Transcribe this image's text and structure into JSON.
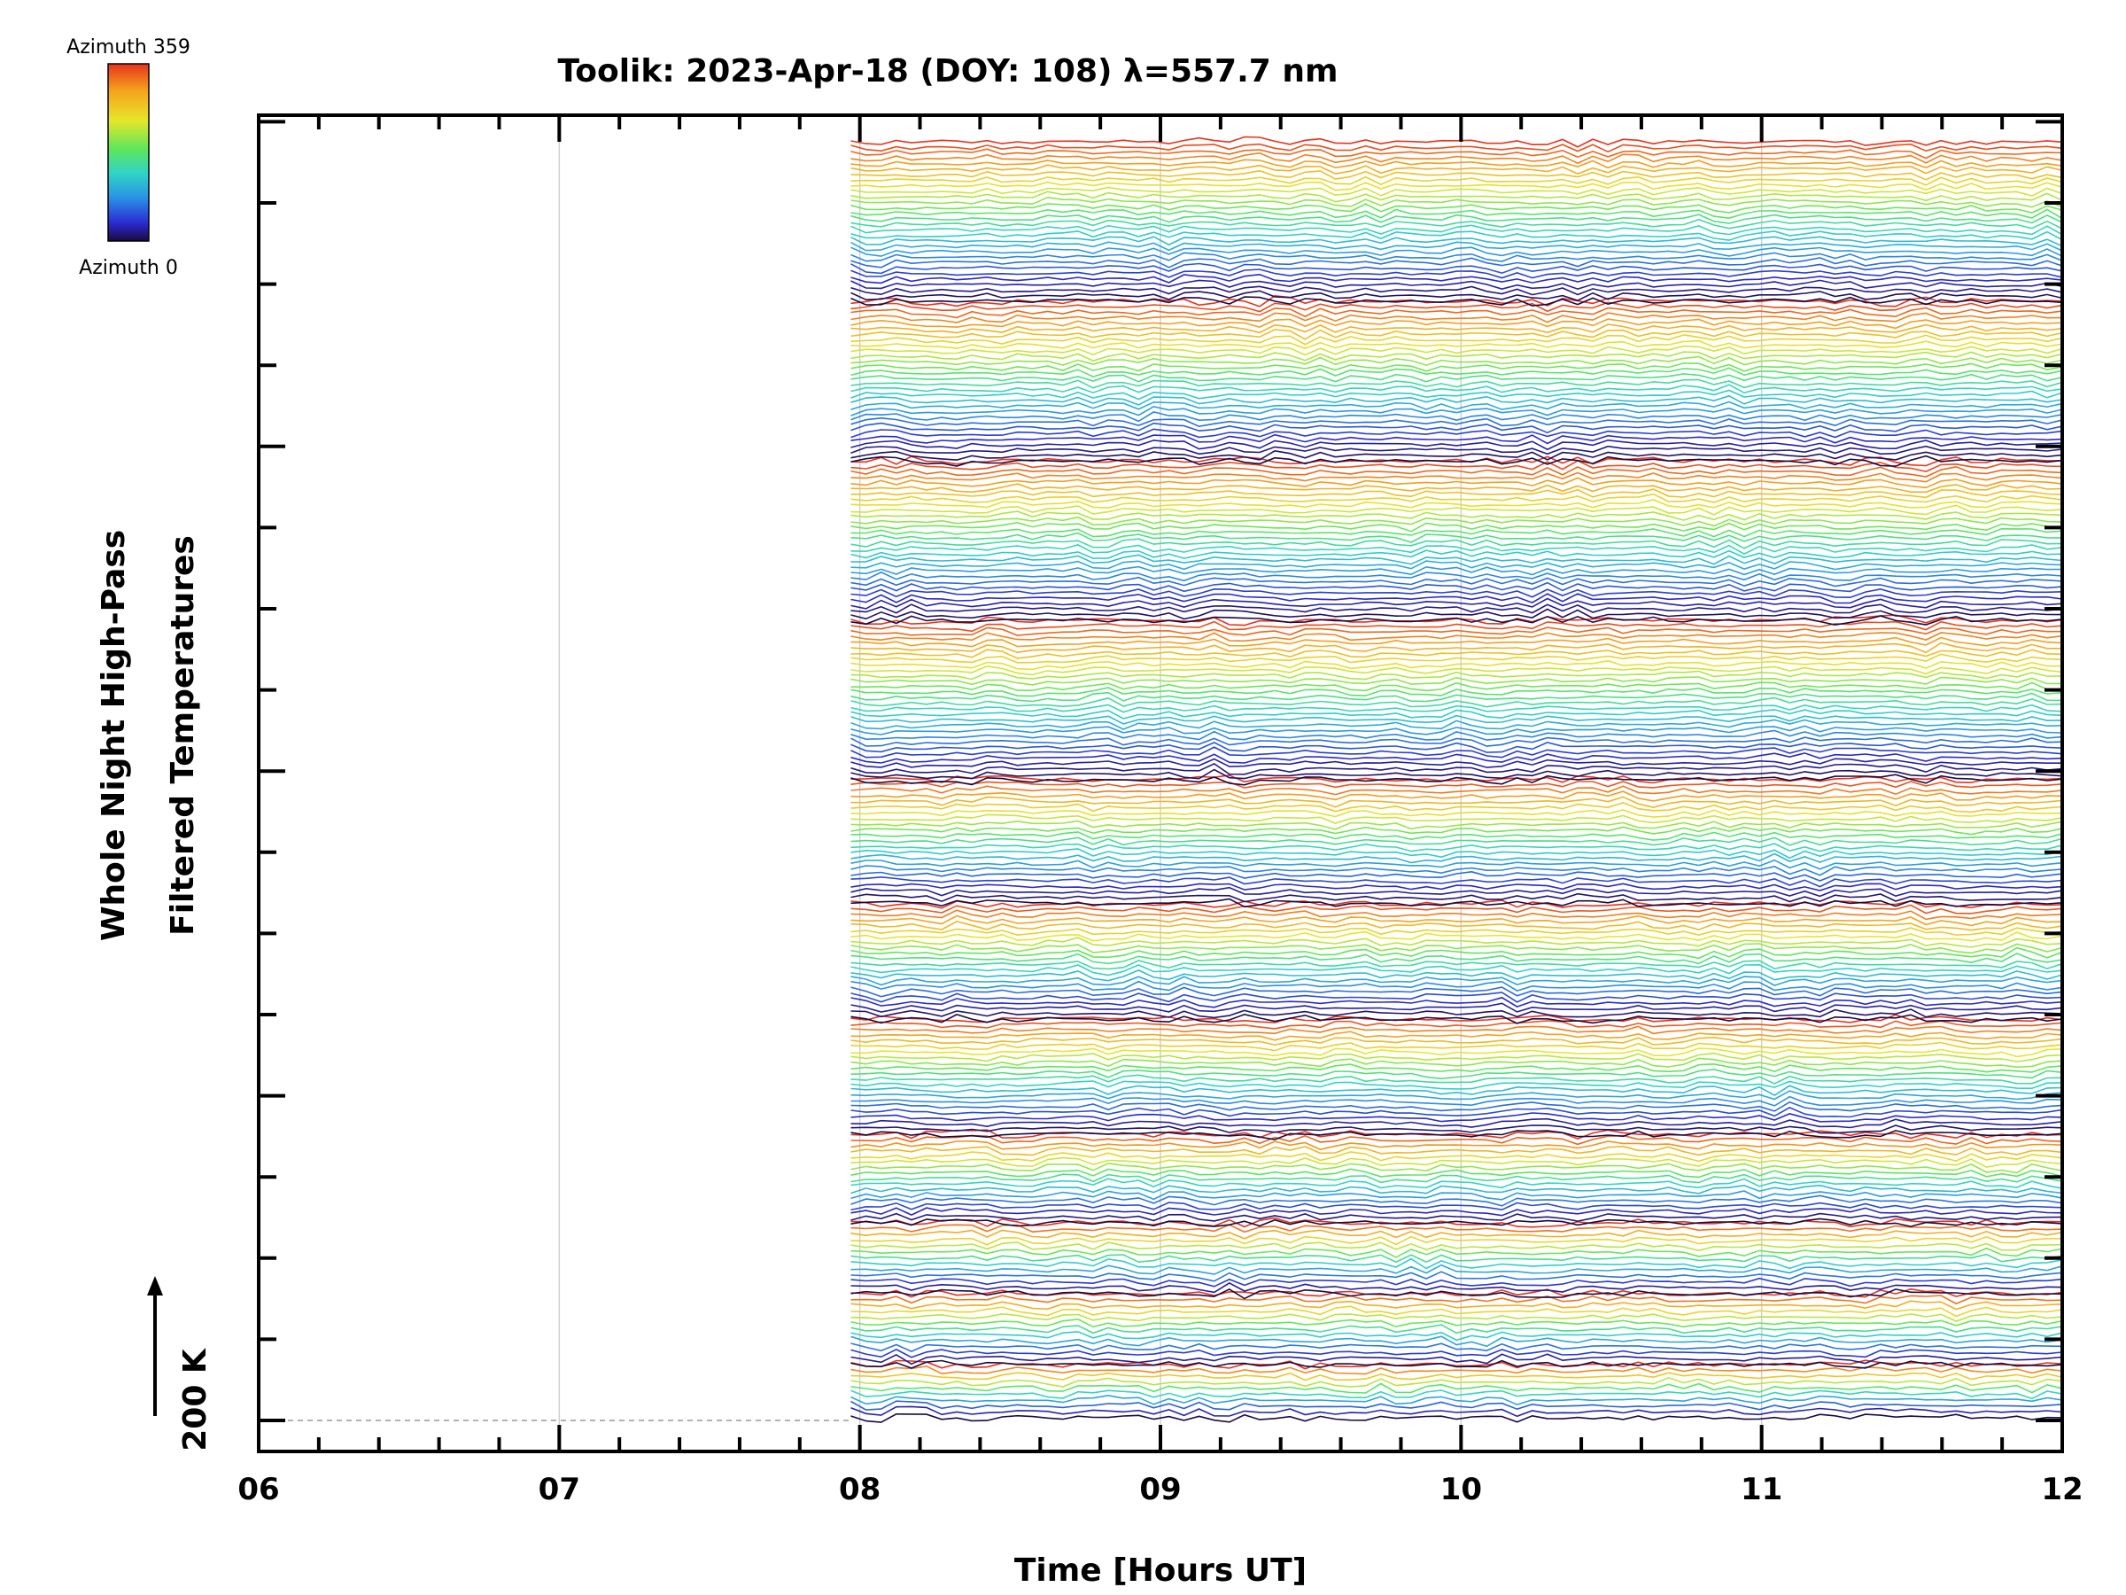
{
  "chart_data": {
    "type": "line",
    "title": "Toolik: 2023-Apr-18 (DOY: 108) λ=557.7 nm",
    "xlabel": "Time [Hours UT]",
    "ylabel_line1": "Whole Night High-Pass",
    "ylabel_line2": "Filtered Temperatures",
    "x_ticks": [
      "06",
      "07",
      "08",
      "09",
      "10",
      "11",
      "12"
    ],
    "xlim": [
      6,
      12
    ],
    "scale_label": "200 K",
    "colorbar": {
      "top_label": "Azimuth  359",
      "bottom_label": "Azimuth  0",
      "colors": [
        "#e8321b",
        "#f5a21c",
        "#e6e62a",
        "#5fe65a",
        "#2fd4c8",
        "#2a8fe6",
        "#2a2ad0",
        "#1a0a40"
      ]
    },
    "data_start_hour": 7.97,
    "data_end_hour": 12.0,
    "n_rings": 15,
    "grid_vertical": true,
    "series_description_note": ""
  }
}
